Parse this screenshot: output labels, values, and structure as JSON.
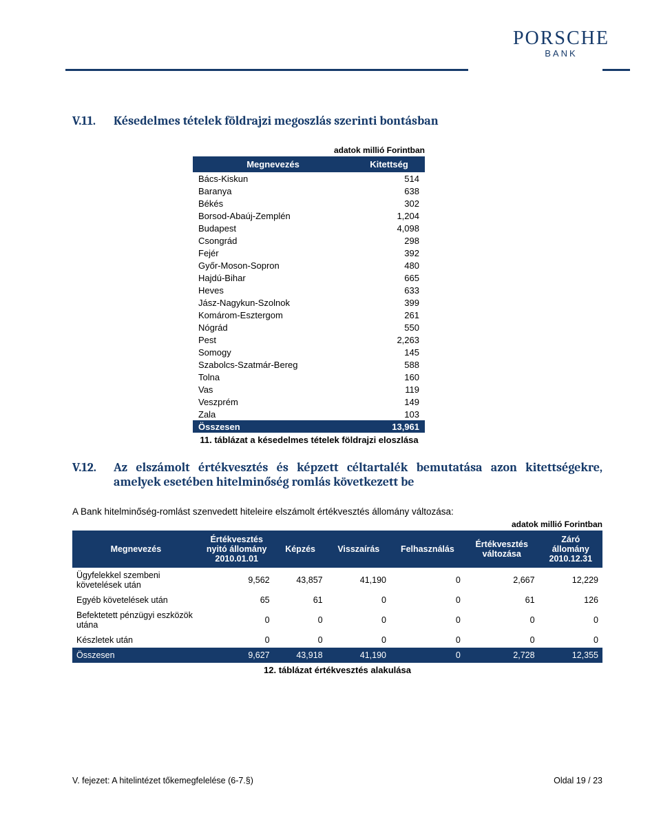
{
  "logo": {
    "main": "PORSCHE",
    "sub": "BANK"
  },
  "section1": {
    "num": "V.11.",
    "title": "Késedelmes tételek földrajzi megoszlás szerinti bontásban"
  },
  "unit_note": "adatok millió Forintban",
  "table1": {
    "headers": [
      "Megnevezés",
      "Kitettség"
    ],
    "rows": [
      [
        "Bács-Kiskun",
        "514"
      ],
      [
        "Baranya",
        "638"
      ],
      [
        "Békés",
        "302"
      ],
      [
        "Borsod-Abaúj-Zemplén",
        "1,204"
      ],
      [
        "Budapest",
        "4,098"
      ],
      [
        "Csongrád",
        "298"
      ],
      [
        "Fejér",
        "392"
      ],
      [
        "Győr-Moson-Sopron",
        "480"
      ],
      [
        "Hajdú-Bihar",
        "665"
      ],
      [
        "Heves",
        "633"
      ],
      [
        "Jász-Nagykun-Szolnok",
        "399"
      ],
      [
        "Komárom-Esztergom",
        "261"
      ],
      [
        "Nógrád",
        "550"
      ],
      [
        "Pest",
        "2,263"
      ],
      [
        "Somogy",
        "145"
      ],
      [
        "Szabolcs-Szatmár-Bereg",
        "588"
      ],
      [
        "Tolna",
        "160"
      ],
      [
        "Vas",
        "119"
      ],
      [
        "Veszprém",
        "149"
      ],
      [
        "Zala",
        "103"
      ]
    ],
    "total": [
      "Összesen",
      "13,961"
    ],
    "caption": "11. táblázat a késedelmes tételek földrajzi eloszlása"
  },
  "section2": {
    "num": "V.12.",
    "title": "Az elszámolt értékvesztés és képzett céltartalék bemutatása azon kitettségekre, amelyek esetében hitelminőség romlás következett be"
  },
  "para": "A Bank hitelminőség-romlást szenvedett hiteleire elszámolt értékvesztés állomány változása:",
  "table2": {
    "headers": [
      "Megnevezés",
      "Értékvesztés nyitó állomány 2010.01.01",
      "Képzés",
      "Visszaírás",
      "Felhasználás",
      "Értékvesztés változása",
      "Záró állomány 2010.12.31"
    ],
    "rows": [
      [
        "Ügyfelekkel szembeni követelések után",
        "9,562",
        "43,857",
        "41,190",
        "0",
        "2,667",
        "12,229"
      ],
      [
        "Egyéb követelések után",
        "65",
        "61",
        "0",
        "0",
        "61",
        "126"
      ],
      [
        "Befektetett pénzügyi eszközök utána",
        "0",
        "0",
        "0",
        "0",
        "0",
        "0"
      ],
      [
        "Készletek után",
        "0",
        "0",
        "0",
        "0",
        "0",
        "0"
      ]
    ],
    "total": [
      "Összesen",
      "9,627",
      "43,918",
      "41,190",
      "0",
      "2,728",
      "12,355"
    ],
    "caption": "12. táblázat értékvesztés alakulása",
    "col_widths": [
      "24%",
      "14%",
      "10%",
      "12%",
      "14%",
      "14%",
      "12%"
    ]
  },
  "footer": {
    "left": "V. fejezet: A hitelintézet tőkemegfelelése (6-7.§)",
    "right": "Oldal 19 / 23"
  },
  "colors": {
    "brand": "#163a6a",
    "white": "#ffffff",
    "text": "#000000"
  }
}
